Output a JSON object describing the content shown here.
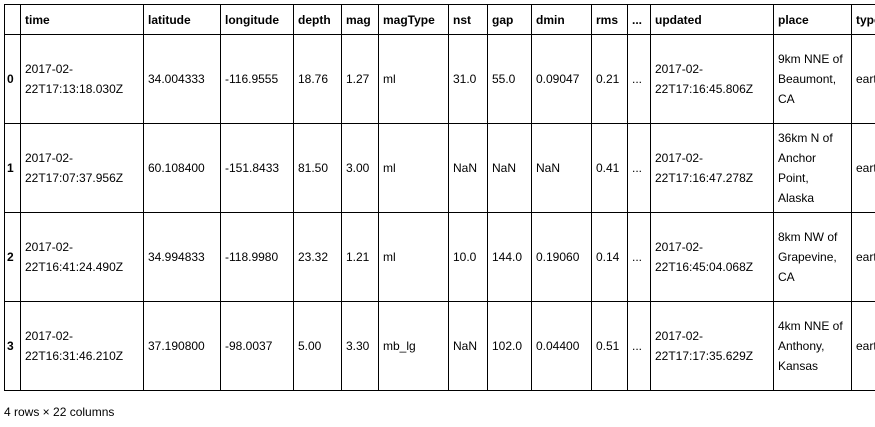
{
  "table": {
    "columns": [
      "time",
      "latitude",
      "longitude",
      "depth",
      "mag",
      "magType",
      "nst",
      "gap",
      "dmin",
      "rms",
      "...",
      "updated",
      "place",
      "type"
    ],
    "index": [
      "0",
      "1",
      "2",
      "3"
    ],
    "rows": [
      [
        "2017-02-22T17:13:18.030Z",
        "34.004333",
        "-116.9555",
        "18.76",
        "1.27",
        "ml",
        "31.0",
        "55.0",
        "0.09047",
        "0.21",
        "...",
        "2017-02-22T17:16:45.806Z",
        "9km NNE of Beaumont, CA",
        "earthquake"
      ],
      [
        "2017-02-22T17:07:37.956Z",
        "60.108400",
        "-151.8433",
        "81.50",
        "3.00",
        "ml",
        "NaN",
        "NaN",
        "NaN",
        "0.41",
        "...",
        "2017-02-22T17:16:47.278Z",
        "36km N of Anchor Point, Alaska",
        "earthquake"
      ],
      [
        "2017-02-22T16:41:24.490Z",
        "34.994833",
        "-118.9980",
        "23.32",
        "1.21",
        "ml",
        "10.0",
        "144.0",
        "0.19060",
        "0.14",
        "...",
        "2017-02-22T16:45:04.068Z",
        "8km NW of Grapevine, CA",
        "earthquake"
      ],
      [
        "2017-02-22T16:31:46.210Z",
        "37.190800",
        "-98.0037",
        "5.00",
        "3.30",
        "mb_lg",
        "NaN",
        "102.0",
        "0.04400",
        "0.51",
        "...",
        "2017-02-22T17:17:35.629Z",
        "4km NNE of Anthony, Kansas",
        "earthquake"
      ]
    ]
  },
  "footer": "4 rows × 22 columns"
}
